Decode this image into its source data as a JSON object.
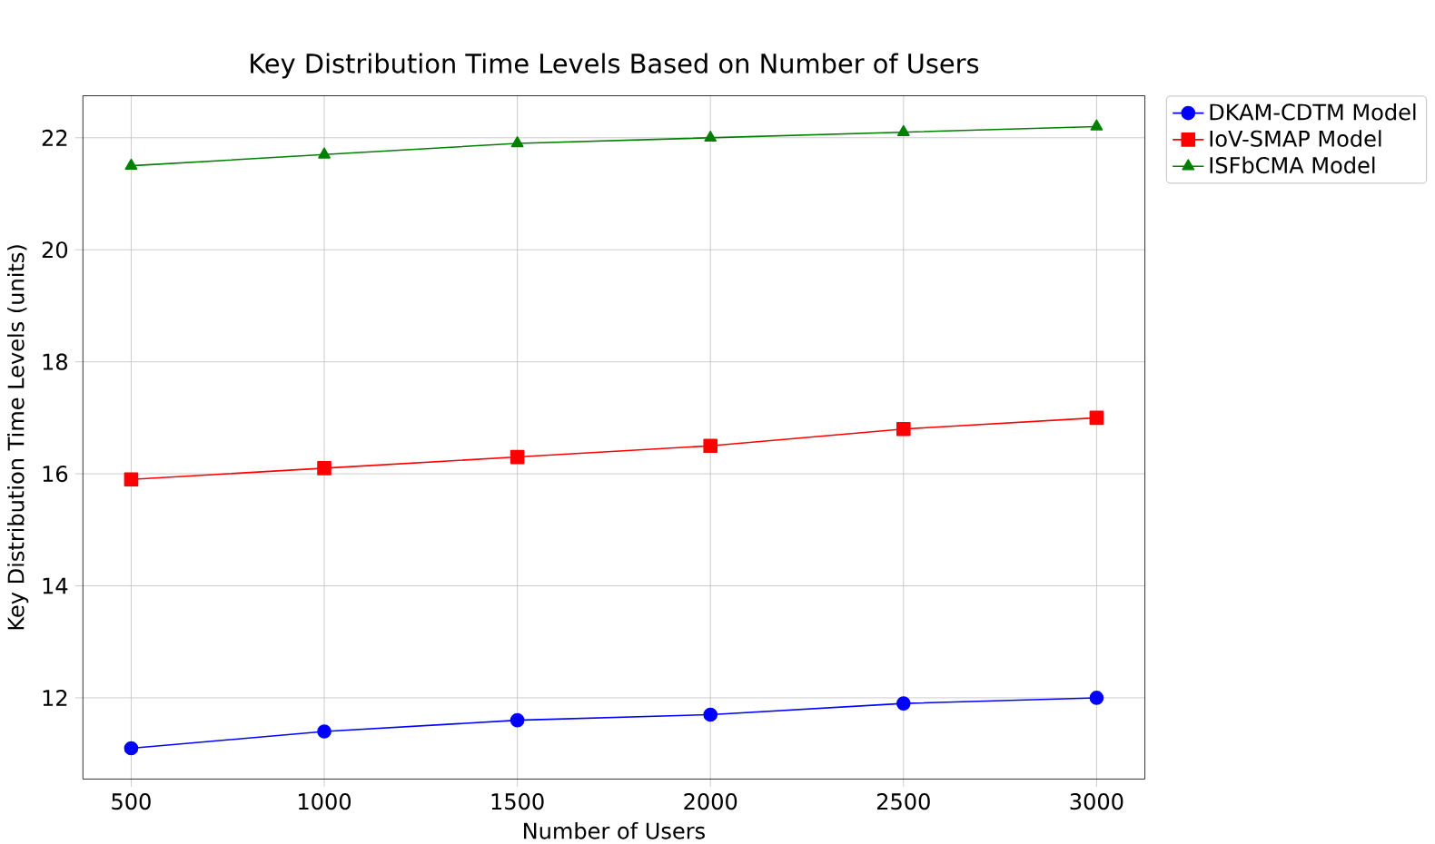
{
  "chart_data": {
    "type": "line",
    "title": "Key Distribution Time Levels Based on Number of Users",
    "xlabel": "Number of Users",
    "ylabel": "Key Distribution Time Levels (units)",
    "x": [
      500,
      1000,
      1500,
      2000,
      2500,
      3000
    ],
    "series": [
      {
        "name": "DKAM-CDTM Model",
        "color": "#0000ff",
        "marker": "circle",
        "values": [
          11.1,
          11.4,
          11.6,
          11.7,
          11.9,
          12.0
        ]
      },
      {
        "name": "IoV-SMAP Model",
        "color": "#ff0000",
        "marker": "square",
        "values": [
          15.9,
          16.1,
          16.3,
          16.5,
          16.8,
          17.0
        ]
      },
      {
        "name": "ISFbCMA Model",
        "color": "#008000",
        "marker": "triangle",
        "values": [
          21.5,
          21.7,
          21.9,
          22.0,
          22.1,
          22.2
        ]
      }
    ],
    "xlim": [
      375,
      3125
    ],
    "ylim": [
      10.55,
      22.75
    ],
    "xticks": [
      500,
      1000,
      1500,
      2000,
      2500,
      3000
    ],
    "yticks": [
      12,
      14,
      16,
      18,
      20,
      22
    ],
    "grid": true,
    "legend": "top right",
    "line_style": "solid"
  }
}
